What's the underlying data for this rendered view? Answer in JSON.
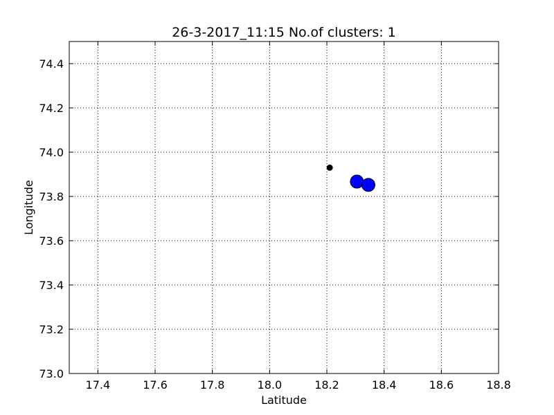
{
  "chart_data": {
    "type": "scatter",
    "title": "26-3-2017_11:15 No.of clusters: 1",
    "xlabel": "Latitude",
    "ylabel": "Longitude",
    "xlim": [
      17.3,
      18.8
    ],
    "ylim": [
      73.0,
      74.5
    ],
    "xticks": [
      "17.4",
      "17.6",
      "17.8",
      "18.0",
      "18.2",
      "18.4",
      "18.6",
      "18.8"
    ],
    "yticks": [
      "73.0",
      "73.2",
      "73.4",
      "73.6",
      "73.8",
      "74.0",
      "74.2",
      "74.4"
    ],
    "grid": true,
    "series": [
      {
        "color": "#0000ff",
        "marker": "large-circle",
        "points": [
          {
            "x": 18.305,
            "y": 73.867
          },
          {
            "x": 18.345,
            "y": 73.852
          }
        ]
      },
      {
        "color": "#000000",
        "marker": "small-circle",
        "points": [
          {
            "x": 18.21,
            "y": 73.93
          }
        ]
      }
    ]
  }
}
